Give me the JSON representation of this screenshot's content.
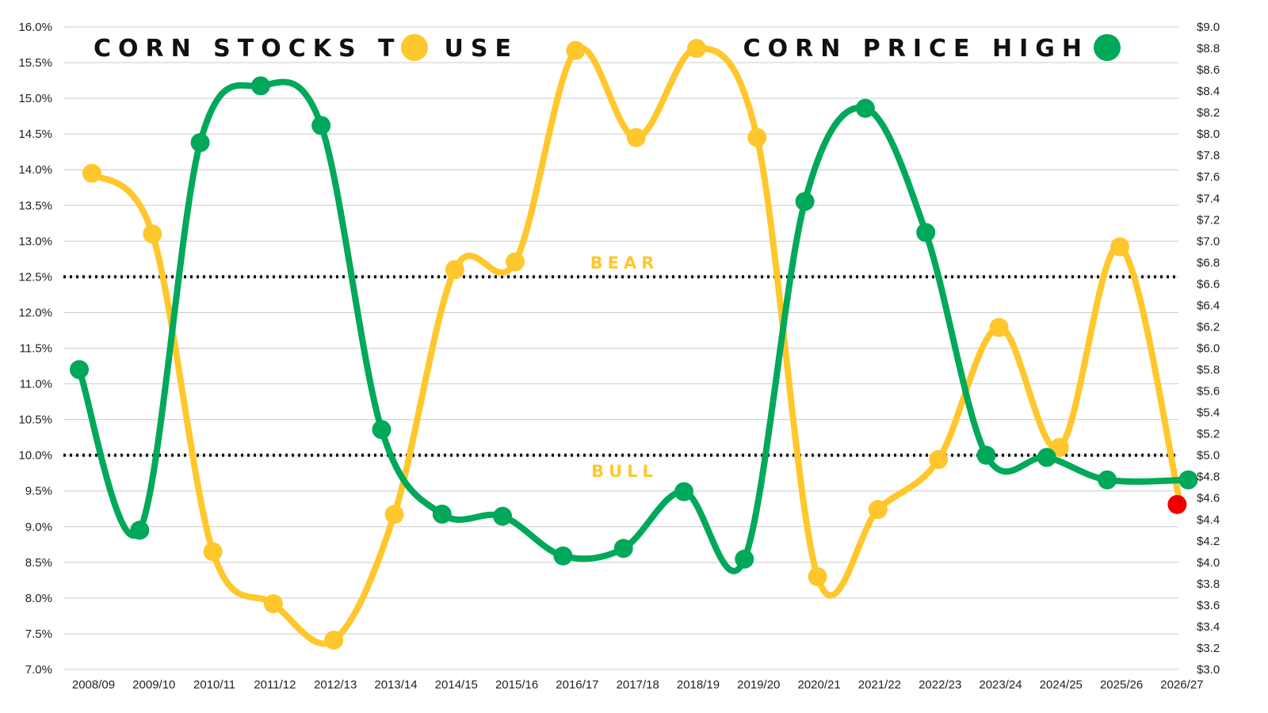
{
  "chart_data": {
    "type": "line",
    "categories": [
      "2008/09",
      "2009/10",
      "2010/11",
      "2011/12",
      "2012/13",
      "2013/14",
      "2014/15",
      "2015/16",
      "2016/17",
      "2017/18",
      "2018/19",
      "2019/20",
      "2020/21",
      "2021/22",
      "2022/23",
      "2023/24",
      "2024/25",
      "2025/26",
      "2026/27"
    ],
    "series": [
      {
        "name": "CORN STOCKS TO USE",
        "axis": "left",
        "color": "#FFC72C",
        "values": [
          13.95,
          13.1,
          8.65,
          7.92,
          7.41,
          9.17,
          12.6,
          12.71,
          15.67,
          14.45,
          15.7,
          14.45,
          8.3,
          9.24,
          9.94,
          11.79,
          10.11,
          12.92,
          9.31
        ]
      },
      {
        "name": "CORN PRICE HIGH",
        "axis": "right",
        "color": "#00A859",
        "values": [
          5.8,
          4.3,
          7.92,
          8.45,
          8.08,
          5.24,
          4.45,
          4.43,
          4.06,
          4.13,
          4.66,
          4.03,
          7.37,
          8.24,
          7.08,
          5.0,
          4.98,
          4.77,
          4.77
        ]
      }
    ],
    "highlight_point": {
      "category": "2026/27",
      "value": 9.31,
      "color": "#EE0000"
    },
    "ylim_left": [
      7.0,
      16.0
    ],
    "ylim_right": [
      3.0,
      9.0
    ],
    "left_ticks": [
      "7.0%",
      "7.5%",
      "8.0%",
      "8.5%",
      "9.0%",
      "9.5%",
      "10.0%",
      "10.5%",
      "11.0%",
      "11.5%",
      "12.0%",
      "12.5%",
      "13.0%",
      "13.5%",
      "14.0%",
      "14.5%",
      "15.0%",
      "15.5%",
      "16.0%"
    ],
    "right_ticks": [
      "$3.0",
      "$3.2",
      "$3.4",
      "$3.6",
      "$3.8",
      "$4.0",
      "$4.2",
      "$4.4",
      "$4.6",
      "$4.8",
      "$5.0",
      "$5.2",
      "$5.4",
      "$5.6",
      "$5.8",
      "$6.0",
      "$6.2",
      "$6.4",
      "$6.6",
      "$6.8",
      "$7.0",
      "$7.2",
      "$7.4",
      "$7.6",
      "$7.8",
      "$8.0",
      "$8.2",
      "$8.4",
      "$8.6",
      "$8.8",
      "$9.0"
    ],
    "reference_lines": [
      {
        "value": 12.5,
        "label": "BEAR",
        "label_position": "above"
      },
      {
        "value": 10.0,
        "label": "BULL",
        "label_position": "below"
      }
    ],
    "grid": true,
    "legend_placement": "top"
  }
}
